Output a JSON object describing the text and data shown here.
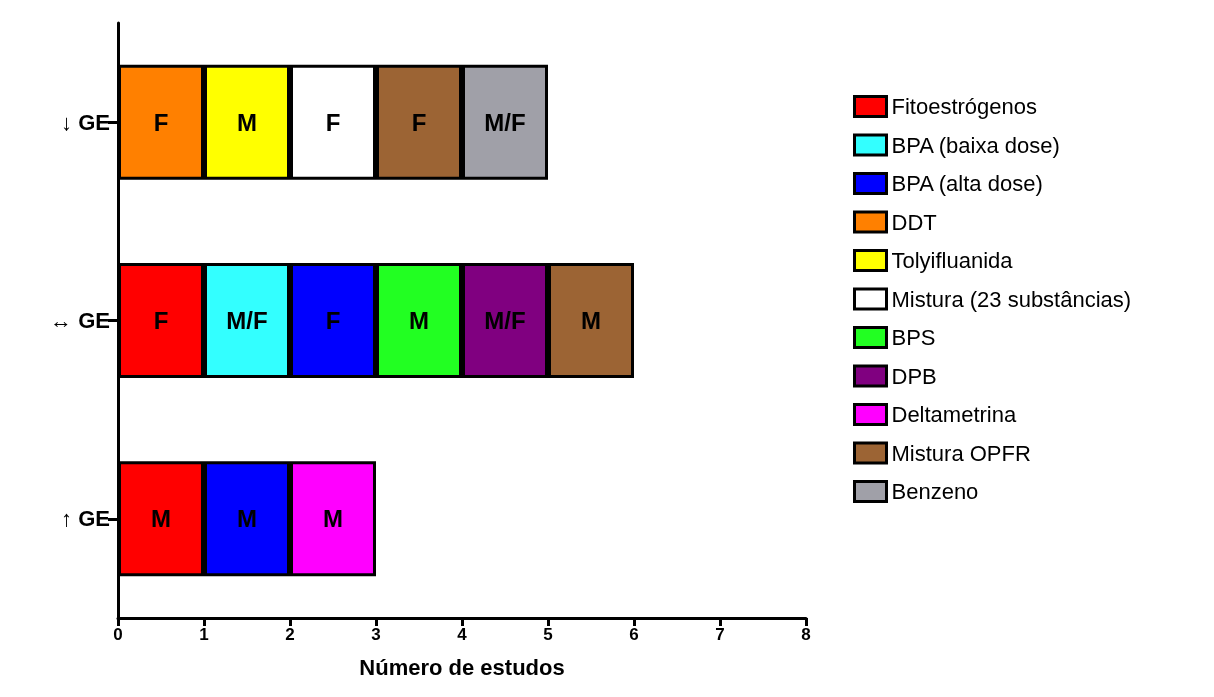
{
  "chart_data": {
    "type": "bar",
    "orientation": "horizontal",
    "stacked": true,
    "xlabel": "Número de estudos",
    "categories": [
      "↓ GE",
      "↔ GE",
      "↑ GE"
    ],
    "xlim": [
      0,
      8
    ],
    "xticks": [
      0,
      1,
      2,
      3,
      4,
      5,
      6,
      7,
      8
    ],
    "grid": false,
    "legend": "right",
    "series": [
      {
        "name": "Fitoestrógenos",
        "color": "#ff0000",
        "values": [
          null,
          1,
          1
        ],
        "value_labels": [
          null,
          "F",
          "M"
        ]
      },
      {
        "name": "BPA (baixa dose)",
        "color": "#33ffff",
        "values": [
          null,
          1,
          null
        ],
        "value_labels": [
          null,
          "M/F",
          null
        ]
      },
      {
        "name": "BPA (alta dose)",
        "color": "#0000ff",
        "values": [
          null,
          1,
          1
        ],
        "value_labels": [
          null,
          "F",
          "M"
        ]
      },
      {
        "name": "DDT",
        "color": "#ff8000",
        "values": [
          1,
          null,
          null
        ],
        "value_labels": [
          "F",
          null,
          null
        ]
      },
      {
        "name": "Tolyifluanida",
        "color": "#ffff00",
        "values": [
          1,
          null,
          null
        ],
        "value_labels": [
          "M",
          null,
          null
        ]
      },
      {
        "name": "Mistura (23 substâncias)",
        "color": "#ffffff",
        "values": [
          1,
          null,
          null
        ],
        "value_labels": [
          "F",
          null,
          null
        ]
      },
      {
        "name": "BPS",
        "color": "#22ff22",
        "values": [
          null,
          1,
          null
        ],
        "value_labels": [
          null,
          "M",
          null
        ]
      },
      {
        "name": "DPB",
        "color": "#800080",
        "values": [
          null,
          1,
          null
        ],
        "value_labels": [
          null,
          "M/F",
          null
        ]
      },
      {
        "name": "Deltametrina",
        "color": "#ff00ff",
        "values": [
          null,
          null,
          1
        ],
        "value_labels": [
          null,
          null,
          "M"
        ]
      },
      {
        "name": "Mistura OPFR",
        "color": "#9c6434",
        "values": [
          1,
          1,
          null
        ],
        "value_labels": [
          "F",
          "M",
          null
        ]
      },
      {
        "name": "Benzeno",
        "color": "#a0a0a8",
        "values": [
          1,
          null,
          null
        ],
        "value_labels": [
          "M/F",
          null,
          null
        ]
      }
    ]
  }
}
